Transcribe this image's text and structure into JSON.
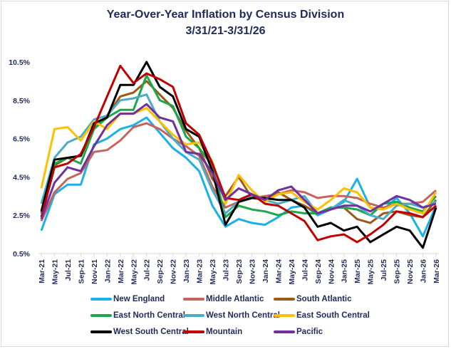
{
  "chart_data": {
    "type": "line",
    "title": "Year-Over-Year Inflation by Census Division",
    "subtitle": "3/31/21-3/31/26",
    "xlabel": "",
    "ylabel": "",
    "ylim": [
      0.5,
      10.5
    ],
    "yticks": [
      "0.5%",
      "2.5%",
      "4.5%",
      "6.5%",
      "8.5%",
      "10.5%"
    ],
    "ytick_values": [
      0.5,
      2.5,
      4.5,
      6.5,
      8.5,
      10.5
    ],
    "grid": false,
    "legend_position": "bottom",
    "categories": [
      "Mar-21",
      "May-21",
      "Jul-21",
      "Sep-21",
      "Nov-21",
      "Jan-22",
      "Mar-22",
      "May-22",
      "Jul-22",
      "Sep-22",
      "Nov-22",
      "Jan-23",
      "Mar-23",
      "May-23",
      "Jul-23",
      "Sep-23",
      "Nov-23",
      "Jan-24",
      "Mar-24",
      "May-24",
      "Jul-24",
      "Sep-24",
      "Nov-24",
      "Jan-25",
      "Mar-25",
      "May-25",
      "Jul-25",
      "Sep-25",
      "Nov-25",
      "Jan-26",
      "Mar-26"
    ],
    "series": [
      {
        "name": "New England",
        "color": "#1cb0e8",
        "values": [
          1.7,
          3.6,
          4.1,
          4.1,
          6.2,
          6.5,
          7.0,
          7.2,
          7.6,
          6.8,
          6.0,
          5.5,
          4.8,
          3.0,
          1.9,
          2.3,
          2.1,
          2.0,
          2.4,
          2.9,
          3.0,
          2.5,
          2.8,
          3.2,
          4.4,
          2.9,
          2.8,
          3.4,
          2.6,
          1.4,
          3.0
        ]
      },
      {
        "name": "Middle Atlantic",
        "color": "#c6645c",
        "values": [
          2.2,
          3.7,
          4.4,
          4.7,
          5.8,
          5.9,
          6.4,
          7.1,
          7.3,
          7.0,
          6.5,
          6.1,
          5.6,
          4.0,
          2.9,
          3.2,
          3.4,
          3.5,
          3.6,
          3.8,
          3.7,
          3.4,
          3.5,
          3.5,
          3.4,
          3.1,
          2.9,
          3.1,
          3.1,
          3.2,
          3.8
        ]
      },
      {
        "name": "South Atlantic",
        "color": "#9c5a1a",
        "values": [
          2.6,
          5.1,
          5.5,
          5.6,
          7.0,
          7.7,
          8.7,
          8.9,
          9.5,
          8.8,
          8.1,
          6.9,
          6.0,
          4.4,
          3.5,
          4.5,
          3.4,
          3.3,
          3.7,
          3.3,
          3.0,
          2.6,
          2.9,
          2.9,
          2.3,
          2.1,
          2.6,
          2.7,
          2.5,
          2.4,
          3.3
        ]
      },
      {
        "name": "East North Central",
        "color": "#1ba84a",
        "values": [
          2.6,
          5.2,
          5.5,
          5.2,
          7.0,
          7.6,
          8.0,
          8.0,
          9.8,
          8.5,
          8.2,
          6.6,
          6.0,
          5.1,
          2.4,
          3.0,
          2.8,
          2.7,
          2.5,
          2.7,
          2.6,
          2.6,
          2.9,
          2.9,
          2.8,
          2.5,
          3.1,
          3.2,
          2.9,
          2.7,
          3.5
        ]
      },
      {
        "name": "West North Central",
        "color": "#4bacc6",
        "values": [
          3.1,
          5.5,
          6.3,
          6.6,
          7.5,
          7.7,
          8.5,
          8.6,
          8.8,
          7.4,
          6.5,
          5.8,
          5.4,
          3.8,
          2.6,
          3.2,
          3.5,
          3.3,
          3.1,
          3.3,
          3.5,
          2.6,
          2.8,
          3.3,
          3.0,
          2.5,
          2.3,
          3.0,
          3.1,
          2.9,
          3.2
        ]
      },
      {
        "name": "East South Central",
        "color": "#ffc000",
        "values": [
          3.9,
          7.0,
          7.1,
          6.4,
          7.4,
          7.0,
          7.8,
          7.8,
          8.1,
          7.4,
          6.7,
          6.2,
          6.3,
          5.3,
          3.1,
          4.6,
          3.8,
          3.2,
          3.6,
          3.7,
          3.2,
          2.8,
          3.3,
          3.9,
          3.7,
          2.9,
          2.8,
          3.1,
          2.8,
          2.6,
          3.7
        ]
      },
      {
        "name": "West South Central",
        "color": "#000000",
        "values": [
          2.7,
          5.4,
          5.5,
          5.6,
          7.3,
          7.6,
          9.3,
          9.3,
          10.5,
          9.2,
          8.7,
          7.0,
          6.6,
          4.8,
          2.0,
          3.2,
          3.4,
          3.4,
          3.3,
          3.3,
          2.9,
          1.9,
          2.1,
          1.7,
          1.9,
          1.1,
          1.5,
          1.9,
          1.7,
          0.8,
          2.9
        ]
      },
      {
        "name": "Mountain",
        "color": "#c00000",
        "values": [
          2.4,
          5.0,
          5.2,
          5.7,
          7.1,
          8.7,
          10.3,
          9.4,
          9.9,
          9.6,
          9.2,
          7.3,
          6.7,
          5.2,
          3.4,
          3.3,
          3.6,
          3.1,
          3.0,
          2.6,
          2.2,
          1.2,
          1.4,
          1.5,
          1.1,
          1.5,
          2.0,
          2.7,
          2.6,
          2.4,
          3.0
        ]
      },
      {
        "name": "Pacific",
        "color": "#7030a0",
        "values": [
          2.3,
          4.2,
          5.0,
          4.8,
          6.1,
          7.2,
          7.8,
          7.8,
          8.3,
          7.6,
          7.4,
          5.8,
          5.7,
          4.7,
          3.3,
          3.9,
          3.6,
          3.3,
          3.8,
          4.0,
          3.3,
          2.6,
          2.8,
          3.0,
          3.0,
          2.7,
          3.1,
          3.5,
          3.3,
          2.9,
          3.1
        ]
      }
    ]
  }
}
